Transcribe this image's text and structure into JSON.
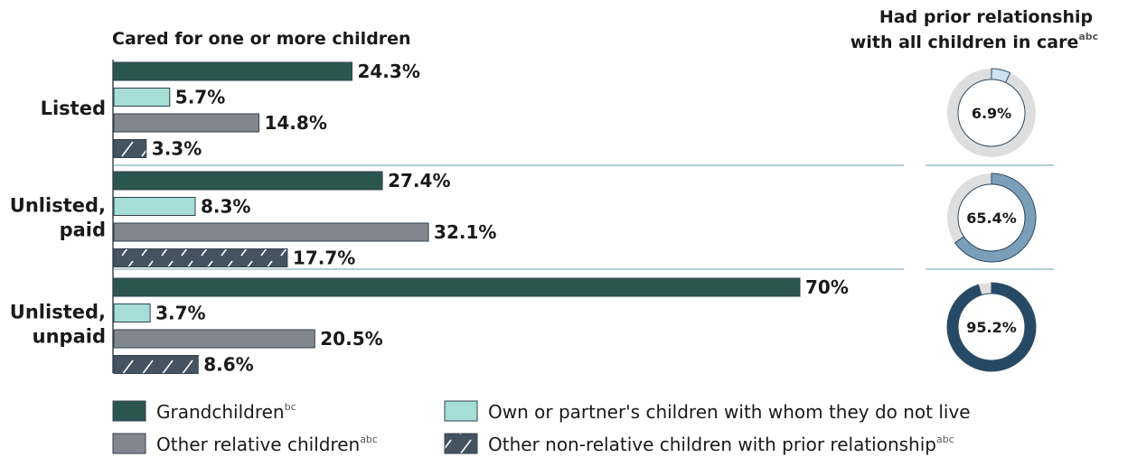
{
  "chart_data": [
    {
      "type": "bar",
      "orientation": "horizontal",
      "title": "Cared for one or more children",
      "xlabel": "",
      "ylabel": "",
      "xlim": [
        0,
        70
      ],
      "grid": false,
      "legend_position": "bottom",
      "categories": [
        "Listed",
        "Unlisted, paid",
        "Unlisted, unpaid"
      ],
      "category_lines": [
        [
          "Listed"
        ],
        [
          "Unlisted,",
          "paid"
        ],
        [
          "Unlisted,",
          "unpaid"
        ]
      ],
      "series": [
        {
          "name": "Grandchildren",
          "sup": "bc",
          "values": [
            24.3,
            27.4,
            70
          ],
          "labels": [
            "24.3%",
            "27.4%",
            "70%"
          ],
          "color": "#2b5650",
          "pattern": "solid"
        },
        {
          "name": "Own or partner's children with whom they do not live",
          "sup": "",
          "values": [
            5.7,
            8.3,
            3.7
          ],
          "labels": [
            "5.7%",
            "8.3%",
            "3.7%"
          ],
          "color": "#a6ddd6",
          "pattern": "solid"
        },
        {
          "name": "Other relative children",
          "sup": "abc",
          "values": [
            14.8,
            32.1,
            20.5
          ],
          "labels": [
            "14.8%",
            "32.1%",
            "20.5%"
          ],
          "color": "#82878f",
          "pattern": "solid"
        },
        {
          "name": "Other non-relative children with prior relationship",
          "sup": "abc",
          "values": [
            3.3,
            17.7,
            8.6
          ],
          "labels": [
            "3.3%",
            "17.7%",
            "8.6%"
          ],
          "color": "#455361",
          "pattern": "hatched"
        }
      ]
    },
    {
      "type": "pie",
      "subtype": "donut",
      "title_lines": [
        "Had prior relationship",
        "with all children in care"
      ],
      "title_sup": "abc",
      "categories": [
        "Listed",
        "Unlisted, paid",
        "Unlisted, unpaid"
      ],
      "values": [
        6.9,
        65.4,
        95.2
      ],
      "labels": [
        "6.9%",
        "65.4%",
        "95.2%"
      ],
      "colors": [
        "#cfe2f3",
        "#7b9fb9",
        "#264a66"
      ],
      "remainder_color": "#dedede"
    }
  ]
}
